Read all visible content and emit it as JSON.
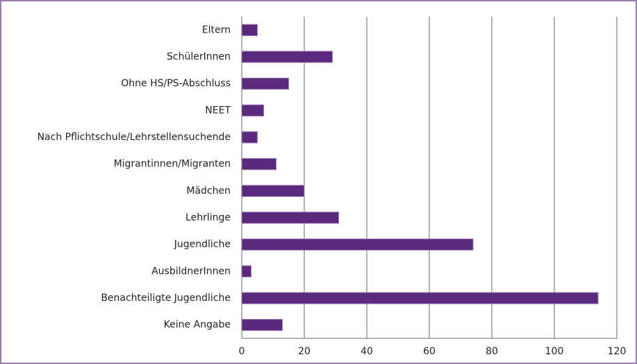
{
  "chart_data": {
    "type": "hbar",
    "categories": [
      "Eltern",
      "SchülerInnen",
      "Ohne HS/PS-Abschluss",
      "NEET",
      "Nach Pflichtschule/Lehrstellensuchende",
      "Migrantinnen/Migranten",
      "Mädchen",
      "Lehrlinge",
      "Jugendliche",
      "AusbildnerInnen",
      "Benachteiligte Jugendliche",
      "Keine Angabe"
    ],
    "values": [
      5,
      29,
      15,
      7,
      5,
      11,
      20,
      31,
      74,
      3,
      114,
      13
    ],
    "color": "#5b2a7e",
    "xlim": [
      0,
      120
    ],
    "xticks": [
      0,
      20,
      40,
      60,
      80,
      100,
      120
    ],
    "grid": true
  }
}
